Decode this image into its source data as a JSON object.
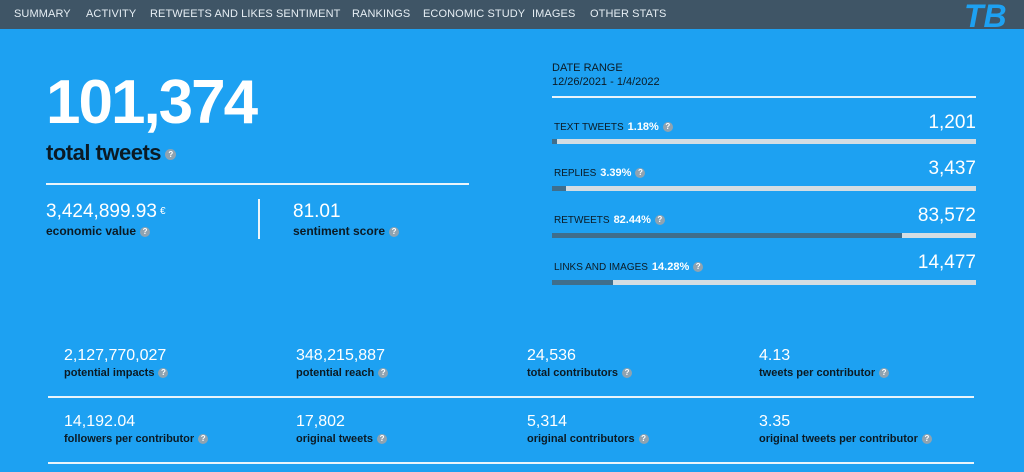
{
  "nav": {
    "items": [
      "SUMMARY",
      "ACTIVITY",
      "RETWEETS AND LIKES",
      "SENTIMENT",
      "RANKINGS",
      "ECONOMIC STUDY",
      "IMAGES",
      "OTHER STATS"
    ],
    "logo_text": "TB"
  },
  "hero": {
    "total_tweets": "101,374",
    "total_tweets_label": "total tweets",
    "economic_value": "3,424,899.93",
    "currency": "€",
    "economic_value_label": "economic value",
    "sentiment_score": "81.01",
    "sentiment_score_label": "sentiment score"
  },
  "date_range": {
    "title": "DATE RANGE",
    "value": "12/26/2021 - 1/4/2022"
  },
  "breakdown": [
    {
      "label": "TEXT TWEETS",
      "percent": "1.18%",
      "count": "1,201",
      "fraction": 0.0118
    },
    {
      "label": "REPLIES",
      "percent": "3.39%",
      "count": "3,437",
      "fraction": 0.0339
    },
    {
      "label": "RETWEETS",
      "percent": "82.44%",
      "count": "83,572",
      "fraction": 0.8244
    },
    {
      "label": "LINKS AND IMAGES",
      "percent": "14.28%",
      "count": "14,477",
      "fraction": 0.1428
    }
  ],
  "grid": {
    "row1": [
      {
        "value": "2,127,770,027",
        "label": "potential impacts"
      },
      {
        "value": "348,215,887",
        "label": "potential reach"
      },
      {
        "value": "24,536",
        "label": "total contributors"
      },
      {
        "value": "4.13",
        "label": "tweets per contributor"
      }
    ],
    "row2": [
      {
        "value": "14,192.04",
        "label": "followers per contributor"
      },
      {
        "value": "17,802",
        "label": "original tweets"
      },
      {
        "value": "5,314",
        "label": "original contributors"
      },
      {
        "value": "3.35",
        "label": "original tweets per contributor"
      }
    ]
  },
  "help_glyph": "?",
  "colors": {
    "background": "#1da1f2",
    "nav": "#3f5566",
    "bar_fill": "#3f6e8c",
    "bar_track": "#d3dde3"
  }
}
